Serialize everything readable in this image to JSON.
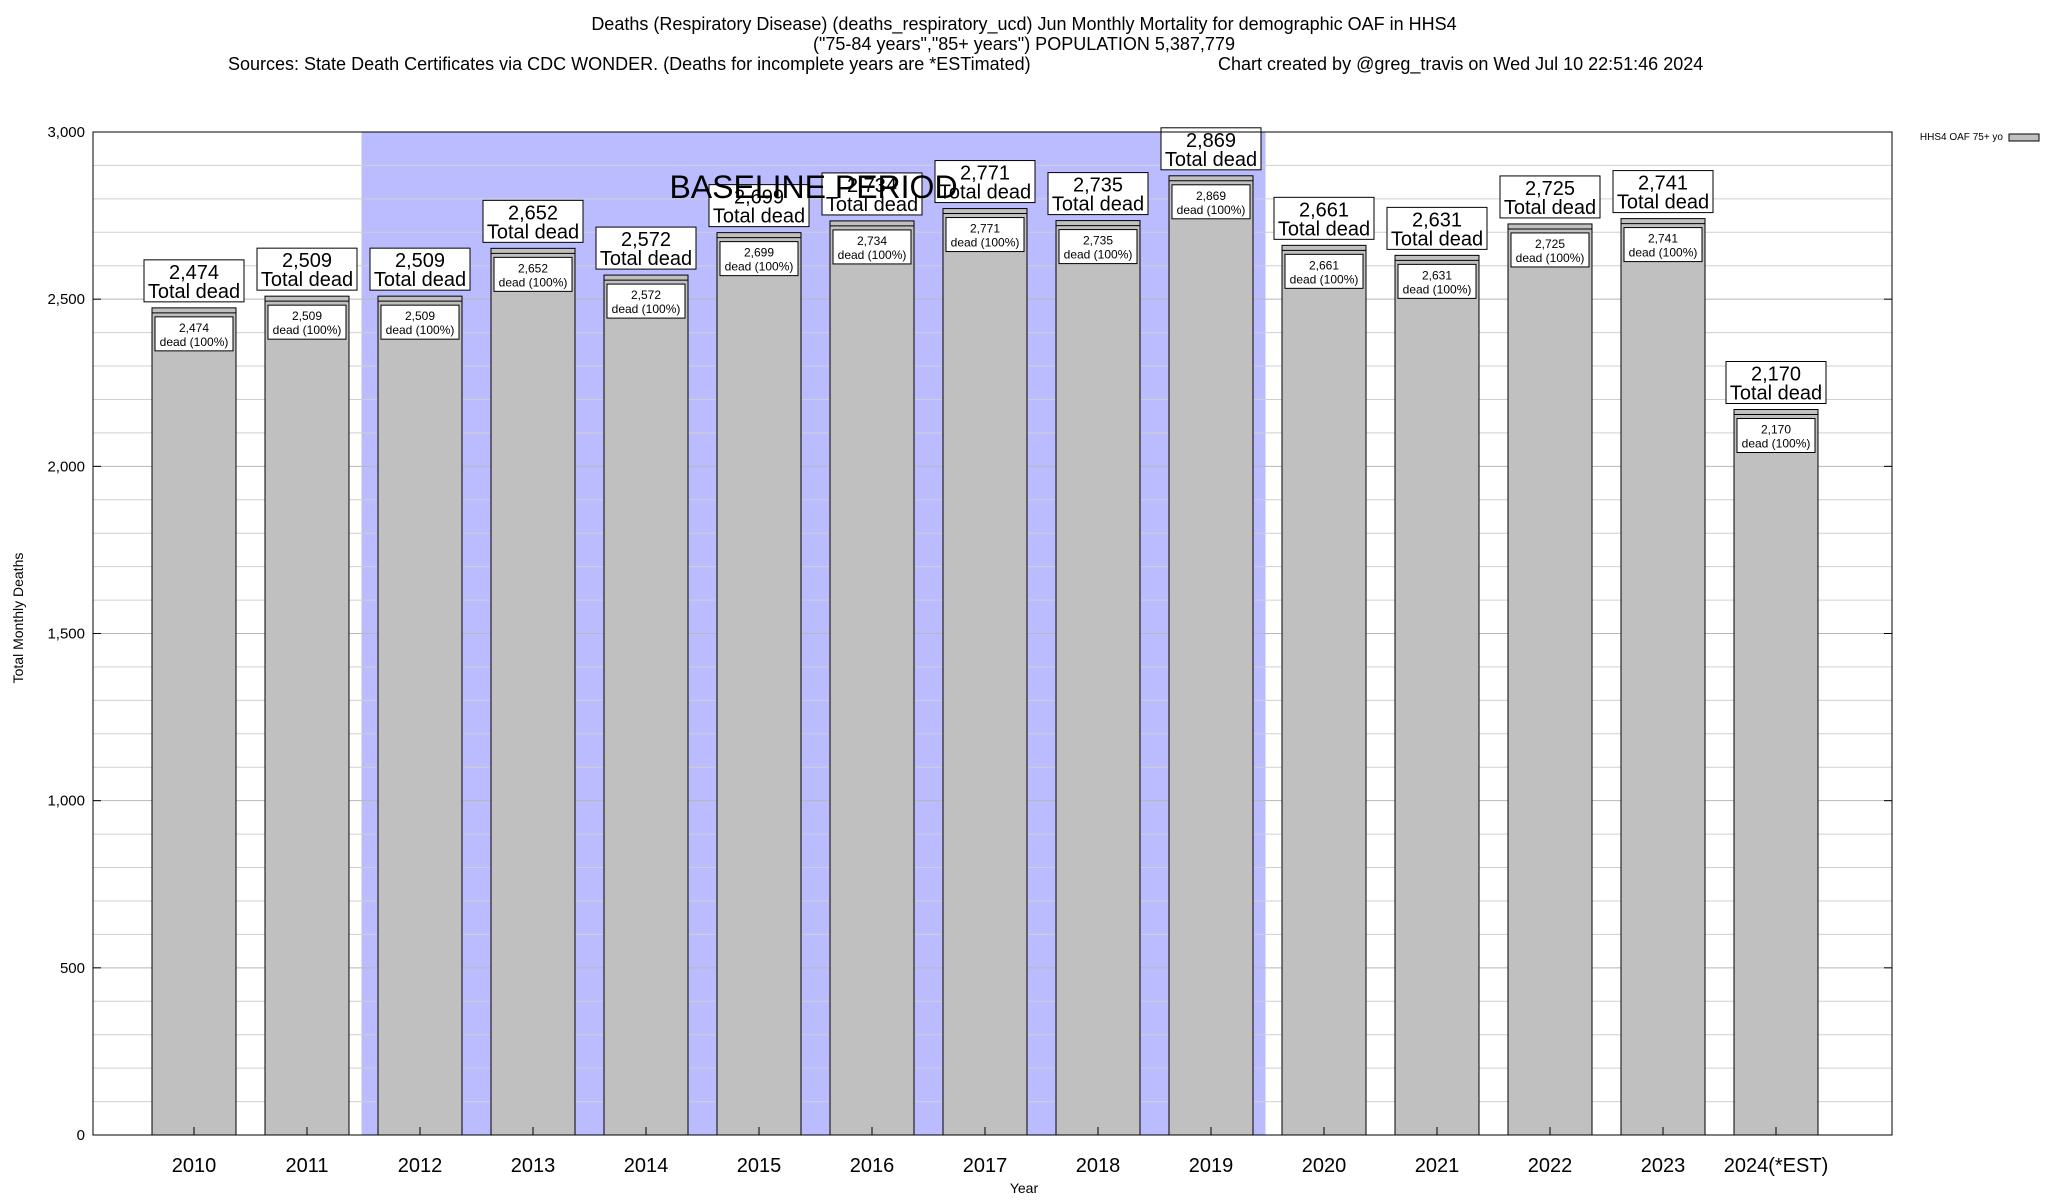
{
  "titles": {
    "line1": "Deaths (Respiratory Disease) (deaths_respiratory_ucd) Jun Monthly Mortality for demographic OAF in HHS4",
    "line2": "(\"75-84 years\",\"85+ years\") POPULATION 5,387,779",
    "line3_sources": "Sources: State Death Certificates via CDC WONDER. (Deaths for incomplete years are *ESTimated)",
    "line3_credit": "Chart created by @greg_travis on Wed Jul 10 22:51:46 2024"
  },
  "colors": {
    "bar": "#c0c0c0",
    "baseline_band": "#bbbbff",
    "grid": "#d0d0d0"
  },
  "chart_data": {
    "type": "bar",
    "xlabel": "Year",
    "ylabel": "Total Monthly Deaths",
    "ylim": [
      0,
      3000
    ],
    "yticks": [
      0,
      500,
      1000,
      1500,
      2000,
      2500,
      3000
    ],
    "ytick_labels": [
      "0",
      "500",
      "1,000",
      "1,500",
      "2,000",
      "2,500",
      "3,000"
    ],
    "categories": [
      "2010",
      "2011",
      "2012",
      "2013",
      "2014",
      "2015",
      "2016",
      "2017",
      "2018",
      "2019",
      "2020",
      "2021",
      "2022",
      "2023",
      "2024(*EST)"
    ],
    "values": [
      2474,
      2509,
      2509,
      2652,
      2572,
      2699,
      2734,
      2771,
      2735,
      2869,
      2661,
      2631,
      2725,
      2741,
      2170
    ],
    "value_labels": [
      "2,474",
      "2,509",
      "2,509",
      "2,652",
      "2,572",
      "2,699",
      "2,734",
      "2,771",
      "2,735",
      "2,869",
      "2,661",
      "2,631",
      "2,725",
      "2,741",
      "2,170"
    ],
    "total_suffix": "Total dead",
    "inner_suffix": "dead (100%)",
    "baseline_period": {
      "label": "BASELINE PERIOD",
      "start": "2012",
      "end": "2019"
    },
    "legend": {
      "entry": "HHS4 OAF 75+ yo",
      "placement": "top-right"
    },
    "grid": true
  }
}
